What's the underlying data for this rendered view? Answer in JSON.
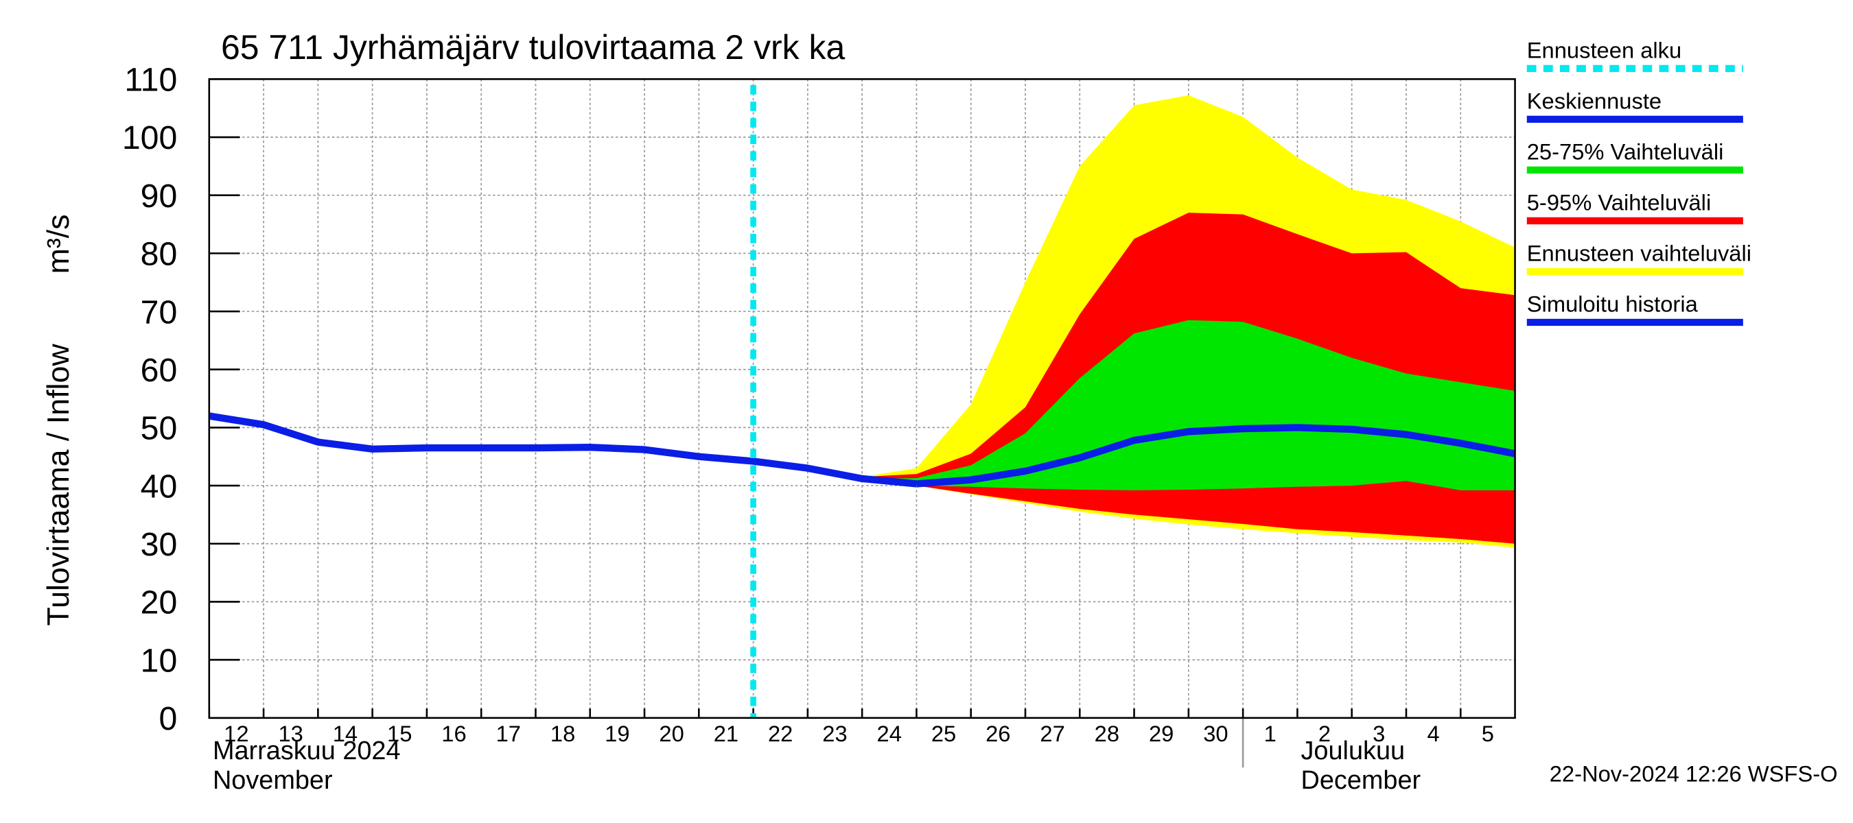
{
  "chart_data": {
    "type": "band-forecast",
    "title": "65 711 Jyrhämäjärv tulovirtaama 2 vrk ka",
    "y_label": "Tulovirtaama / Inflow",
    "y_unit": "m³/s",
    "month_labels": [
      {
        "x": 0,
        "lines": [
          "Marraskuu 2024",
          "November"
        ]
      },
      {
        "x": 19,
        "lines": [
          "Joulukuu",
          "December"
        ]
      }
    ],
    "footer": "22-Nov-2024 12:26 WSFS-O",
    "xlim": [
      0,
      24
    ],
    "xticks": [
      {
        "value": 0,
        "label": "12"
      },
      {
        "value": 1,
        "label": "13"
      },
      {
        "value": 2,
        "label": "14"
      },
      {
        "value": 3,
        "label": "15"
      },
      {
        "value": 4,
        "label": "16"
      },
      {
        "value": 5,
        "label": "17"
      },
      {
        "value": 6,
        "label": "18"
      },
      {
        "value": 7,
        "label": "19"
      },
      {
        "value": 8,
        "label": "20"
      },
      {
        "value": 9,
        "label": "21"
      },
      {
        "value": 10,
        "label": "22"
      },
      {
        "value": 11,
        "label": "23"
      },
      {
        "value": 12,
        "label": "24"
      },
      {
        "value": 13,
        "label": "25"
      },
      {
        "value": 14,
        "label": "26"
      },
      {
        "value": 15,
        "label": "27"
      },
      {
        "value": 16,
        "label": "28"
      },
      {
        "value": 17,
        "label": "29"
      },
      {
        "value": 18,
        "label": "30"
      },
      {
        "value": 19,
        "label": "1"
      },
      {
        "value": 20,
        "label": "2"
      },
      {
        "value": 21,
        "label": "3"
      },
      {
        "value": 22,
        "label": "4"
      },
      {
        "value": 23,
        "label": "5"
      }
    ],
    "ylim": [
      0,
      110
    ],
    "yticks": [
      0,
      10,
      20,
      30,
      40,
      50,
      60,
      70,
      80,
      90,
      100,
      110
    ],
    "grid": true,
    "legend": "right",
    "series": [
      {
        "name": "Ennusteen alku",
        "style": "vline",
        "color": "#00e8f0",
        "x": [
          10
        ]
      },
      {
        "name": "Keskiennuste",
        "style": "line",
        "color": "#0a1ee6",
        "x": [
          13,
          14,
          15,
          16,
          17,
          18,
          19,
          20,
          21,
          22,
          23,
          24
        ],
        "values": [
          40.3,
          41,
          42.5,
          44.8,
          47.8,
          49.3,
          49.8,
          50,
          49.7,
          48.8,
          47.3,
          45.5
        ]
      },
      {
        "name": "25-75% Vaihteluväli",
        "style": "band",
        "color": "#00e600",
        "x": [
          12,
          13,
          14,
          15,
          16,
          17,
          18,
          19,
          20,
          21,
          22,
          23,
          24
        ],
        "upper": [
          41.2,
          41.3,
          43.5,
          49,
          58.5,
          66.2,
          68.5,
          68.2,
          65.3,
          62,
          59.3,
          57.8,
          56.3
        ],
        "lower": [
          41,
          40,
          39.8,
          39.5,
          39.3,
          39.2,
          39.3,
          39.5,
          39.8,
          40,
          40.8,
          39.2,
          39.2
        ]
      },
      {
        "name": "5-95% Vaihteluväli",
        "style": "band",
        "color": "#ff0000",
        "x": [
          12,
          13,
          14,
          15,
          16,
          17,
          18,
          19,
          20,
          21,
          22,
          23,
          24
        ],
        "upper": [
          41.5,
          42,
          45.5,
          53.5,
          69.5,
          82.5,
          87,
          86.7,
          83.3,
          80,
          80.2,
          74,
          72.8
        ],
        "lower": [
          41,
          40,
          38.6,
          37.3,
          36,
          35,
          34.2,
          33.4,
          32.5,
          32,
          31.4,
          30.8,
          30
        ]
      },
      {
        "name": "Ennusteen vaihteluväli",
        "style": "band",
        "color": "#ffff00",
        "x": [
          12,
          13,
          14,
          15,
          16,
          17,
          18,
          19,
          20,
          21,
          22,
          23,
          24
        ],
        "upper": [
          41.5,
          43,
          54,
          75,
          95,
          105.5,
          107.2,
          103.5,
          96.5,
          91,
          89.2,
          85.5,
          81
        ],
        "lower": [
          41,
          40,
          38.5,
          37,
          35.5,
          34.3,
          33.3,
          32.5,
          31.8,
          31.2,
          30.6,
          30.2,
          29.3
        ]
      },
      {
        "name": "Simuloitu historia",
        "style": "line",
        "color": "#0a1ee6",
        "x": [
          0,
          1,
          2,
          3,
          4,
          5,
          6,
          7,
          8,
          9,
          10,
          11,
          12,
          13
        ],
        "values": [
          52,
          50.5,
          47.5,
          46.3,
          46.5,
          46.5,
          46.5,
          46.6,
          46.2,
          45,
          44.2,
          43,
          41.2,
          40.3
        ]
      }
    ]
  }
}
